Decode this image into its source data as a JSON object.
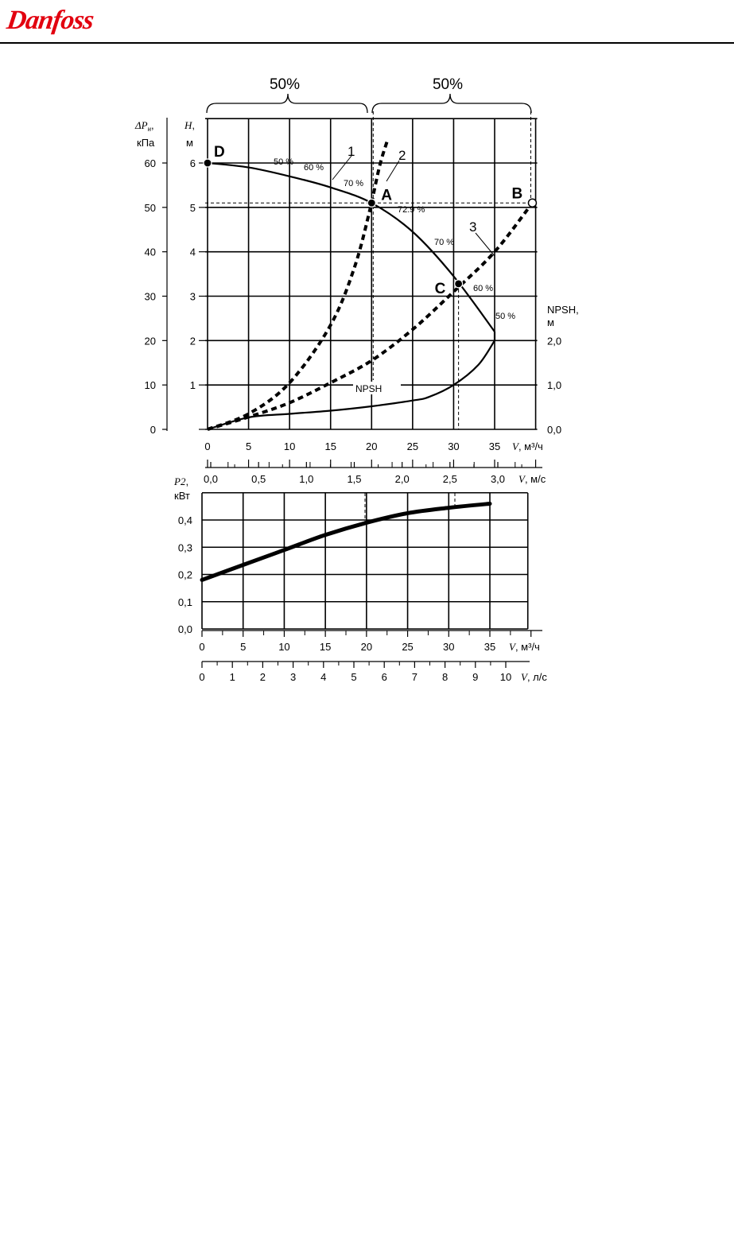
{
  "brand": {
    "logo_text": "Danfoss",
    "logo_color": "#e2000f"
  },
  "chart_data": [
    {
      "type": "line",
      "x_axis": {
        "label": "V, м³/ч",
        "range": [
          0,
          40
        ],
        "ticks": [
          0,
          5,
          10,
          15,
          20,
          25,
          30,
          35
        ]
      },
      "y_axis_head": {
        "label": "H, м",
        "range": [
          0,
          7
        ],
        "ticks": [
          0,
          1,
          2,
          3,
          4,
          5,
          6
        ]
      },
      "y_axis_pressure": {
        "label": "ΔPн, кПа",
        "range": [
          0,
          70
        ],
        "ticks": [
          0,
          10,
          20,
          30,
          40,
          50,
          60
        ]
      },
      "y_axis_npsh": {
        "label": "NPSH, м",
        "ticks": [
          "0,0",
          "1,0",
          "2,0"
        ]
      },
      "velocity_axis": {
        "label": "V, м/с",
        "ticks": [
          "0,0",
          "0,5",
          "1,0",
          "1,5",
          "2,0",
          "2,5",
          "3,0"
        ]
      },
      "grid": true,
      "series": [
        {
          "name": "Q-H",
          "style": "solid",
          "x": [
            0,
            5,
            10,
            15,
            20,
            25,
            30,
            35
          ],
          "y": [
            6.0,
            5.9,
            5.7,
            5.45,
            5.1,
            4.45,
            3.45,
            2.2
          ]
        },
        {
          "name": "NPSH",
          "style": "solid",
          "x": [
            0,
            5,
            10,
            15,
            20,
            25,
            27,
            30,
            33,
            35
          ],
          "y": [
            0.0,
            0.27,
            0.35,
            0.42,
            0.52,
            0.65,
            0.73,
            1.0,
            1.45,
            2.0
          ]
        },
        {
          "name": "1",
          "style": "dashed",
          "x": [
            0,
            5,
            10,
            15,
            18,
            20
          ],
          "y": [
            0.0,
            0.35,
            1.05,
            2.35,
            3.7,
            5.1
          ]
        },
        {
          "name": "2",
          "style": "dashed",
          "x": [
            20,
            21,
            22
          ],
          "y": [
            5.1,
            5.95,
            6.55
          ]
        },
        {
          "name": "3",
          "style": "dashed",
          "x": [
            0,
            5,
            10,
            15,
            20,
            25,
            30,
            35,
            39.6
          ],
          "y": [
            0.0,
            0.28,
            0.6,
            1.05,
            1.55,
            2.25,
            3.1,
            4.0,
            5.1
          ]
        }
      ],
      "points": [
        {
          "label": "D",
          "x": 0,
          "y": 6.0
        },
        {
          "label": "A",
          "x": 20,
          "y": 5.1
        },
        {
          "label": "B",
          "x": 39.6,
          "y": 5.1
        },
        {
          "label": "C",
          "x": 30.6,
          "y": 3.28
        }
      ],
      "efficiency_labels": [
        "50 %",
        "60 %",
        "70 %",
        "72.9 %",
        "70 %",
        "60 %",
        "50 %"
      ],
      "npsh_label": "NPSH",
      "brace_labels": [
        "50%",
        "50%"
      ]
    },
    {
      "type": "line",
      "x_axis": {
        "label": "V, м³/ч",
        "range": [
          0,
          40
        ],
        "ticks": [
          0,
          5,
          10,
          15,
          20,
          25,
          30,
          35
        ]
      },
      "y_axis": {
        "label": "P2, кВт",
        "range": [
          0,
          0.5
        ],
        "ticks": [
          "0,0",
          "0,1",
          "0,2",
          "0,3",
          "0,4"
        ]
      },
      "flow_axis_ls": {
        "label": "V, л/с",
        "ticks": [
          0,
          1,
          2,
          3,
          4,
          5,
          6,
          7,
          8,
          9,
          10
        ]
      },
      "grid": true,
      "series": [
        {
          "name": "P2",
          "style": "solid-thick",
          "x": [
            0,
            5,
            10,
            15,
            20,
            25,
            30,
            35
          ],
          "y": [
            0.18,
            0.235,
            0.29,
            0.345,
            0.39,
            0.425,
            0.445,
            0.46
          ]
        }
      ]
    }
  ]
}
